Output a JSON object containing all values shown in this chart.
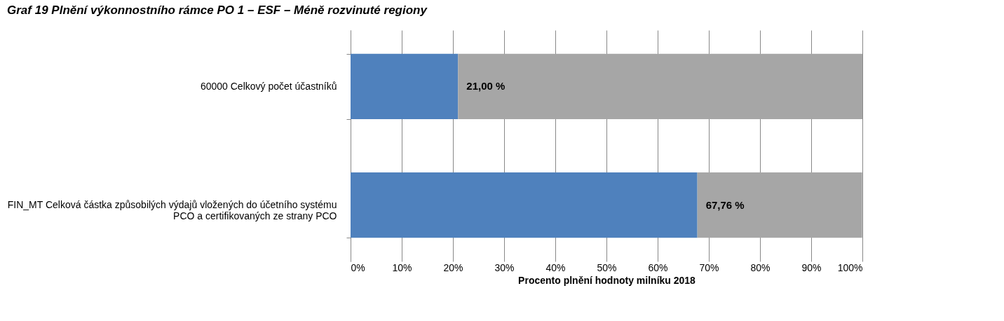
{
  "chart_data": {
    "type": "bar",
    "orientation": "horizontal",
    "stacked": true,
    "title": "Graf 19 Plnění výkonnostního rámce PO 1 – ESF – Méně rozvinuté regiony",
    "xlabel": "Procento plnění hodnoty milníku 2018",
    "categories": [
      "60000 Celkový počet účastníků",
      "FIN_MT Celková částka způsobilých výdajů vložených do účetního systému PCO a certifikovaných ze strany PCO"
    ],
    "series": [
      {
        "color": "#4f81bd",
        "values": [
          21.0,
          67.76
        ],
        "value_labels": [
          "21,00 %",
          "67,76 %"
        ]
      },
      {
        "color": "#a6a6a6",
        "values": [
          79.0,
          32.2
        ]
      }
    ],
    "xlim": [
      0,
      100
    ],
    "xticks": [
      {
        "value": 0,
        "label": "0%"
      },
      {
        "value": 10,
        "label": "10%"
      },
      {
        "value": 20,
        "label": "20%"
      },
      {
        "value": 30,
        "label": "30%"
      },
      {
        "value": 40,
        "label": "40%"
      },
      {
        "value": 50,
        "label": "50%"
      },
      {
        "value": 60,
        "label": "60%"
      },
      {
        "value": 70,
        "label": "70%"
      },
      {
        "value": 80,
        "label": "80%"
      },
      {
        "value": 90,
        "label": "90%"
      },
      {
        "value": 100,
        "label": "100%"
      }
    ],
    "grid": "x"
  }
}
